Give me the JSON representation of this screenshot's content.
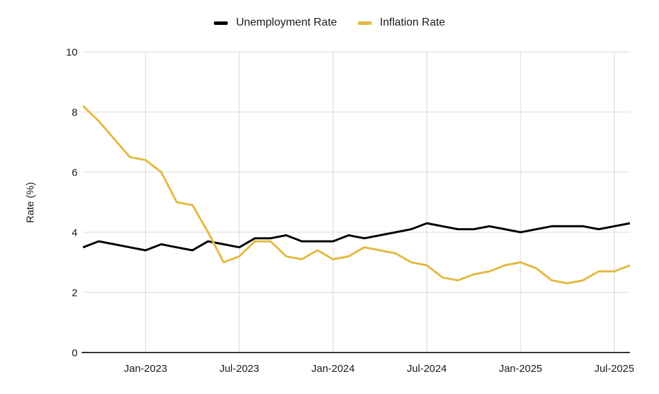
{
  "chart_data": {
    "type": "line",
    "title": "",
    "ylabel": "Rate (%)",
    "ylim": [
      0,
      10
    ],
    "y_ticks": [
      0,
      2,
      4,
      6,
      8,
      10
    ],
    "grid": true,
    "legend_position": "top-center",
    "colors": {
      "grid": "#d8d8d8",
      "axis": "#333333",
      "text": "#1a1a1a",
      "background": "#ffffff"
    },
    "x": [
      "Sep-2022",
      "Oct-2022",
      "Nov-2022",
      "Dec-2022",
      "Jan-2023",
      "Feb-2023",
      "Mar-2023",
      "Apr-2023",
      "May-2023",
      "Jun-2023",
      "Jul-2023",
      "Aug-2023",
      "Sep-2023",
      "Oct-2023",
      "Nov-2023",
      "Dec-2023",
      "Jan-2024",
      "Feb-2024",
      "Mar-2024",
      "Apr-2024",
      "May-2024",
      "Jun-2024",
      "Jul-2024",
      "Aug-2024",
      "Sep-2024",
      "Oct-2024",
      "Nov-2024",
      "Dec-2024",
      "Jan-2025",
      "Feb-2025",
      "Mar-2025",
      "Apr-2025",
      "May-2025",
      "Jun-2025",
      "Jul-2025",
      "Aug-2025"
    ],
    "x_tick_labels": [
      "Jan-2023",
      "Jul-2023",
      "Jan-2024",
      "Jul-2024",
      "Jan-2025",
      "Jul-2025"
    ],
    "x_tick_indices": [
      4,
      10,
      16,
      22,
      28,
      34
    ],
    "series": [
      {
        "name": "Unemployment Rate",
        "color": "#000000",
        "values": [
          3.5,
          3.7,
          3.6,
          3.5,
          3.4,
          3.6,
          3.5,
          3.4,
          3.7,
          3.6,
          3.5,
          3.8,
          3.8,
          3.9,
          3.7,
          3.7,
          3.7,
          3.9,
          3.8,
          3.9,
          4.0,
          4.1,
          4.3,
          4.2,
          4.1,
          4.1,
          4.2,
          4.1,
          4.0,
          4.1,
          4.2,
          4.2,
          4.2,
          4.1,
          4.2,
          4.3
        ]
      },
      {
        "name": "Inflation Rate",
        "color": "#E3BA42",
        "values": [
          8.2,
          7.7,
          7.1,
          6.5,
          6.4,
          6.0,
          5.0,
          4.9,
          4.0,
          3.0,
          3.2,
          3.7,
          3.7,
          3.2,
          3.1,
          3.4,
          3.1,
          3.2,
          3.5,
          3.4,
          3.3,
          3.0,
          2.9,
          2.5,
          2.4,
          2.6,
          2.7,
          2.9,
          3.0,
          2.8,
          2.4,
          2.3,
          2.4,
          2.7,
          2.7,
          2.9
        ]
      }
    ]
  }
}
